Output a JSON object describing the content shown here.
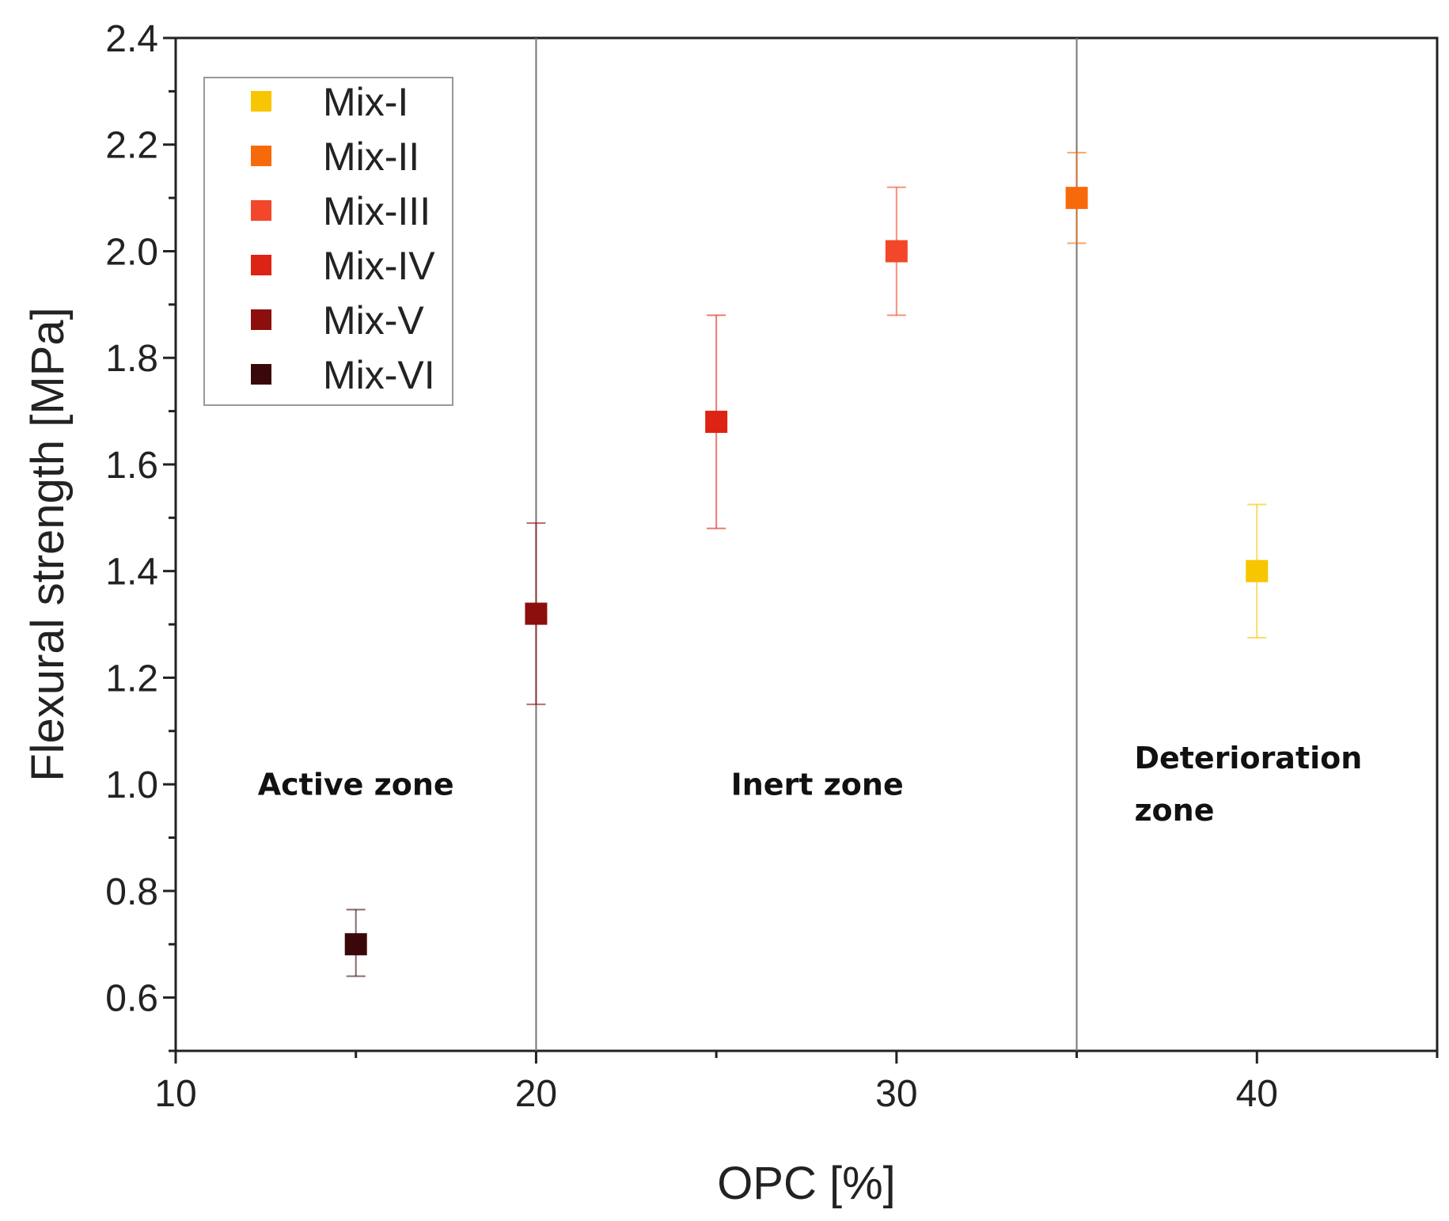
{
  "chart_data": {
    "type": "scatter",
    "title": "",
    "xlabel": "OPC [%]",
    "ylabel": "Flexural strength [MPa]",
    "xlim": [
      10,
      45
    ],
    "ylim": [
      0.5,
      2.4
    ],
    "x_ticks": [
      10,
      20,
      30,
      40
    ],
    "y_ticks": [
      0.6,
      0.8,
      1.0,
      1.2,
      1.4,
      1.6,
      1.8,
      2.0,
      2.2,
      2.4
    ],
    "y_tick_labels": [
      "0.6",
      "0.8",
      "1.0",
      "1.2",
      "1.4",
      "1.6",
      "1.8",
      "2.0",
      "2.2",
      "2.4"
    ],
    "zone_dividers": [
      20,
      35
    ],
    "zones": [
      {
        "lines": [
          "Active zone"
        ],
        "x": 15,
        "y": 0.98
      },
      {
        "lines": [
          "Inert zone"
        ],
        "x": 27.8,
        "y": 0.98
      },
      {
        "lines": [
          "Deterioration",
          "zone"
        ],
        "x": 36.6,
        "y": 1.03
      }
    ],
    "legend_position": "top-left",
    "series": [
      {
        "name": "Mix-I",
        "color": "#f7c600",
        "x": 40,
        "y": 1.4,
        "err_low": 1.275,
        "err_high": 1.525
      },
      {
        "name": "Mix-II",
        "color": "#f76a0c",
        "x": 35,
        "y": 2.1,
        "err_low": 2.015,
        "err_high": 2.185
      },
      {
        "name": "Mix-III",
        "color": "#f2472a",
        "x": 30,
        "y": 2.0,
        "err_low": 1.88,
        "err_high": 2.12
      },
      {
        "name": "Mix-IV",
        "color": "#dd2313",
        "x": 25,
        "y": 1.68,
        "err_low": 1.48,
        "err_high": 1.88
      },
      {
        "name": "Mix-V",
        "color": "#8c0f0d",
        "x": 20,
        "y": 1.32,
        "err_low": 1.15,
        "err_high": 1.49
      },
      {
        "name": "Mix-VI",
        "color": "#3a0808",
        "x": 15,
        "y": 0.7,
        "err_low": 0.64,
        "err_high": 0.765
      }
    ]
  }
}
